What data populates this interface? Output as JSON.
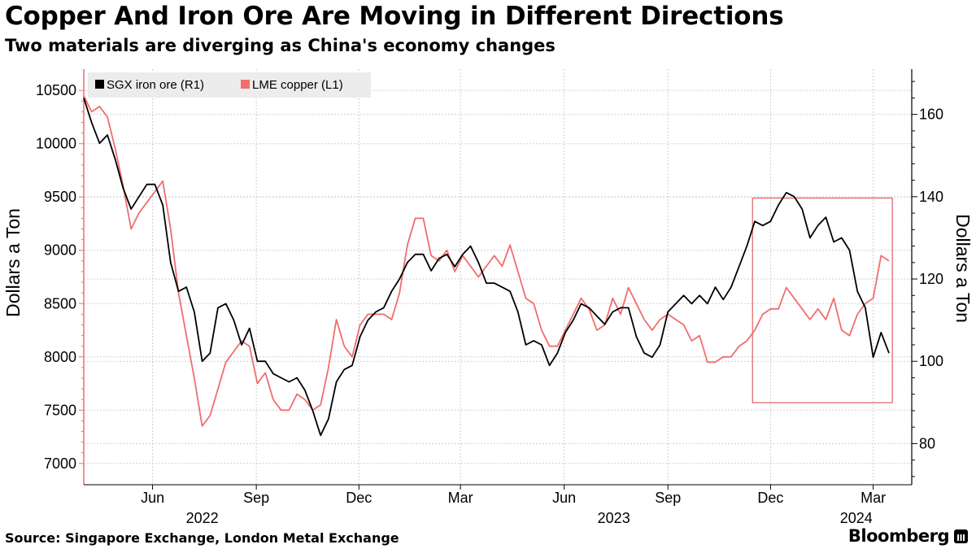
{
  "title": "Copper And Iron Ore Are Moving in Different Directions",
  "subtitle": "Two materials are diverging as China's economy changes",
  "source": "Source: Singapore Exchange, London Metal Exchange",
  "brand": "Bloomberg",
  "chart_data": {
    "type": "line",
    "x_range": [
      "2022-04-01",
      "2024-03-15"
    ],
    "x_ticks": [
      {
        "label": "Jun",
        "date": "2022-06-01"
      },
      {
        "label": "Sep",
        "date": "2022-09-01"
      },
      {
        "label": "Dec",
        "date": "2022-12-01"
      },
      {
        "label": "Mar",
        "date": "2023-03-01"
      },
      {
        "label": "Jun",
        "date": "2023-06-01"
      },
      {
        "label": "Sep",
        "date": "2023-09-01"
      },
      {
        "label": "Dec",
        "date": "2023-12-01"
      },
      {
        "label": "Mar",
        "date": "2024-03-01"
      }
    ],
    "year_labels": [
      {
        "label": "2022",
        "date": "2022-07-15"
      },
      {
        "label": "2023",
        "date": "2023-07-15"
      },
      {
        "label": "2024",
        "date": "2024-02-15"
      }
    ],
    "y_left": {
      "label": "Dollars a Ton",
      "min": 6800,
      "max": 10700,
      "ticks": [
        7000,
        7500,
        8000,
        8500,
        9000,
        9500,
        10000,
        10500
      ]
    },
    "y_right": {
      "label": "Dollars a Ton",
      "min": 70,
      "max": 171,
      "ticks": [
        80,
        100,
        120,
        140,
        160
      ]
    },
    "grid": true,
    "legend_position": "top-left",
    "highlight_box": {
      "start": "2023-11-15",
      "end": "2024-03-18",
      "left_axis_top": 9490,
      "left_axis_bottom": 7570
    },
    "series": [
      {
        "name": "SGX iron ore (R1)",
        "axis": "right",
        "color": "#000000",
        "points": [
          [
            "2022-04-01",
            164
          ],
          [
            "2022-04-08",
            158
          ],
          [
            "2022-04-15",
            153
          ],
          [
            "2022-04-22",
            155
          ],
          [
            "2022-04-29",
            149
          ],
          [
            "2022-05-06",
            142
          ],
          [
            "2022-05-13",
            137
          ],
          [
            "2022-05-20",
            140
          ],
          [
            "2022-05-27",
            143
          ],
          [
            "2022-06-03",
            143
          ],
          [
            "2022-06-10",
            138
          ],
          [
            "2022-06-17",
            124
          ],
          [
            "2022-06-24",
            117
          ],
          [
            "2022-07-01",
            118
          ],
          [
            "2022-07-08",
            112
          ],
          [
            "2022-07-15",
            100
          ],
          [
            "2022-07-22",
            102
          ],
          [
            "2022-07-29",
            113
          ],
          [
            "2022-08-05",
            114
          ],
          [
            "2022-08-12",
            110
          ],
          [
            "2022-08-19",
            104
          ],
          [
            "2022-08-26",
            108
          ],
          [
            "2022-09-02",
            100
          ],
          [
            "2022-09-09",
            100
          ],
          [
            "2022-09-16",
            97
          ],
          [
            "2022-09-23",
            96
          ],
          [
            "2022-09-30",
            95
          ],
          [
            "2022-10-07",
            96
          ],
          [
            "2022-10-14",
            93
          ],
          [
            "2022-10-21",
            88
          ],
          [
            "2022-10-28",
            82
          ],
          [
            "2022-11-04",
            86
          ],
          [
            "2022-11-11",
            95
          ],
          [
            "2022-11-18",
            98
          ],
          [
            "2022-11-25",
            99
          ],
          [
            "2022-12-02",
            106
          ],
          [
            "2022-12-09",
            110
          ],
          [
            "2022-12-16",
            112
          ],
          [
            "2022-12-23",
            113
          ],
          [
            "2022-12-30",
            117
          ],
          [
            "2023-01-06",
            120
          ],
          [
            "2023-01-13",
            124
          ],
          [
            "2023-01-20",
            126
          ],
          [
            "2023-01-27",
            126
          ],
          [
            "2023-02-03",
            122
          ],
          [
            "2023-02-10",
            125
          ],
          [
            "2023-02-17",
            126
          ],
          [
            "2023-02-24",
            123
          ],
          [
            "2023-03-03",
            126
          ],
          [
            "2023-03-10",
            128
          ],
          [
            "2023-03-17",
            124
          ],
          [
            "2023-03-24",
            119
          ],
          [
            "2023-03-31",
            119
          ],
          [
            "2023-04-07",
            118
          ],
          [
            "2023-04-14",
            117
          ],
          [
            "2023-04-21",
            112
          ],
          [
            "2023-04-28",
            104
          ],
          [
            "2023-05-05",
            105
          ],
          [
            "2023-05-12",
            104
          ],
          [
            "2023-05-19",
            99
          ],
          [
            "2023-05-26",
            102
          ],
          [
            "2023-06-02",
            107
          ],
          [
            "2023-06-09",
            110
          ],
          [
            "2023-06-16",
            114
          ],
          [
            "2023-06-23",
            113
          ],
          [
            "2023-06-30",
            111
          ],
          [
            "2023-07-07",
            109
          ],
          [
            "2023-07-14",
            112
          ],
          [
            "2023-07-21",
            113
          ],
          [
            "2023-07-28",
            113
          ],
          [
            "2023-08-04",
            106
          ],
          [
            "2023-08-11",
            102
          ],
          [
            "2023-08-18",
            101
          ],
          [
            "2023-08-25",
            104
          ],
          [
            "2023-09-01",
            112
          ],
          [
            "2023-09-08",
            114
          ],
          [
            "2023-09-15",
            116
          ],
          [
            "2023-09-22",
            114
          ],
          [
            "2023-09-29",
            116
          ],
          [
            "2023-10-06",
            114
          ],
          [
            "2023-10-13",
            118
          ],
          [
            "2023-10-20",
            115
          ],
          [
            "2023-10-27",
            118
          ],
          [
            "2023-11-03",
            123
          ],
          [
            "2023-11-10",
            128
          ],
          [
            "2023-11-17",
            134
          ],
          [
            "2023-11-24",
            133
          ],
          [
            "2023-12-01",
            134
          ],
          [
            "2023-12-08",
            138
          ],
          [
            "2023-12-15",
            141
          ],
          [
            "2023-12-22",
            140
          ],
          [
            "2023-12-29",
            137
          ],
          [
            "2024-01-05",
            130
          ],
          [
            "2024-01-12",
            133
          ],
          [
            "2024-01-19",
            135
          ],
          [
            "2024-01-26",
            129
          ],
          [
            "2024-02-02",
            130
          ],
          [
            "2024-02-09",
            127
          ],
          [
            "2024-02-16",
            117
          ],
          [
            "2024-02-23",
            113
          ],
          [
            "2024-03-01",
            101
          ],
          [
            "2024-03-08",
            107
          ],
          [
            "2024-03-15",
            102
          ]
        ]
      },
      {
        "name": "LME copper (L1)",
        "axis": "left",
        "color": "#f06d6d",
        "points": [
          [
            "2022-04-01",
            10450
          ],
          [
            "2022-04-08",
            10300
          ],
          [
            "2022-04-15",
            10350
          ],
          [
            "2022-04-22",
            10250
          ],
          [
            "2022-04-29",
            9950
          ],
          [
            "2022-05-06",
            9600
          ],
          [
            "2022-05-13",
            9200
          ],
          [
            "2022-05-20",
            9350
          ],
          [
            "2022-05-27",
            9450
          ],
          [
            "2022-06-03",
            9550
          ],
          [
            "2022-06-10",
            9650
          ],
          [
            "2022-06-17",
            9200
          ],
          [
            "2022-06-24",
            8600
          ],
          [
            "2022-07-01",
            8200
          ],
          [
            "2022-07-08",
            7800
          ],
          [
            "2022-07-15",
            7350
          ],
          [
            "2022-07-22",
            7450
          ],
          [
            "2022-07-29",
            7700
          ],
          [
            "2022-08-05",
            7950
          ],
          [
            "2022-08-12",
            8050
          ],
          [
            "2022-08-19",
            8150
          ],
          [
            "2022-08-26",
            8100
          ],
          [
            "2022-09-02",
            7750
          ],
          [
            "2022-09-09",
            7850
          ],
          [
            "2022-09-16",
            7600
          ],
          [
            "2022-09-23",
            7500
          ],
          [
            "2022-09-30",
            7500
          ],
          [
            "2022-10-07",
            7650
          ],
          [
            "2022-10-14",
            7600
          ],
          [
            "2022-10-21",
            7500
          ],
          [
            "2022-10-28",
            7550
          ],
          [
            "2022-11-04",
            7900
          ],
          [
            "2022-11-11",
            8350
          ],
          [
            "2022-11-18",
            8100
          ],
          [
            "2022-11-25",
            8000
          ],
          [
            "2022-12-02",
            8300
          ],
          [
            "2022-12-09",
            8400
          ],
          [
            "2022-12-16",
            8400
          ],
          [
            "2022-12-23",
            8400
          ],
          [
            "2022-12-30",
            8350
          ],
          [
            "2023-01-06",
            8600
          ],
          [
            "2023-01-13",
            9050
          ],
          [
            "2023-01-20",
            9300
          ],
          [
            "2023-01-27",
            9300
          ],
          [
            "2023-02-03",
            8950
          ],
          [
            "2023-02-10",
            8900
          ],
          [
            "2023-02-17",
            9000
          ],
          [
            "2023-02-24",
            8800
          ],
          [
            "2023-03-03",
            8950
          ],
          [
            "2023-03-10",
            8850
          ],
          [
            "2023-03-17",
            8750
          ],
          [
            "2023-03-24",
            8850
          ],
          [
            "2023-03-31",
            8950
          ],
          [
            "2023-04-07",
            8850
          ],
          [
            "2023-04-14",
            9050
          ],
          [
            "2023-04-21",
            8800
          ],
          [
            "2023-04-28",
            8550
          ],
          [
            "2023-05-05",
            8500
          ],
          [
            "2023-05-12",
            8250
          ],
          [
            "2023-05-19",
            8100
          ],
          [
            "2023-05-26",
            8100
          ],
          [
            "2023-06-02",
            8250
          ],
          [
            "2023-06-09",
            8400
          ],
          [
            "2023-06-16",
            8550
          ],
          [
            "2023-06-23",
            8450
          ],
          [
            "2023-06-30",
            8250
          ],
          [
            "2023-07-07",
            8300
          ],
          [
            "2023-07-14",
            8550
          ],
          [
            "2023-07-21",
            8400
          ],
          [
            "2023-07-28",
            8650
          ],
          [
            "2023-08-04",
            8500
          ],
          [
            "2023-08-11",
            8350
          ],
          [
            "2023-08-18",
            8250
          ],
          [
            "2023-08-25",
            8350
          ],
          [
            "2023-09-01",
            8400
          ],
          [
            "2023-09-08",
            8350
          ],
          [
            "2023-09-15",
            8300
          ],
          [
            "2023-09-22",
            8150
          ],
          [
            "2023-09-29",
            8200
          ],
          [
            "2023-10-06",
            7950
          ],
          [
            "2023-10-13",
            7950
          ],
          [
            "2023-10-20",
            8000
          ],
          [
            "2023-10-27",
            8000
          ],
          [
            "2023-11-03",
            8100
          ],
          [
            "2023-11-10",
            8150
          ],
          [
            "2023-11-17",
            8250
          ],
          [
            "2023-11-24",
            8400
          ],
          [
            "2023-12-01",
            8450
          ],
          [
            "2023-12-08",
            8450
          ],
          [
            "2023-12-15",
            8650
          ],
          [
            "2023-12-22",
            8550
          ],
          [
            "2023-12-29",
            8450
          ],
          [
            "2024-01-05",
            8350
          ],
          [
            "2024-01-12",
            8450
          ],
          [
            "2024-01-19",
            8350
          ],
          [
            "2024-01-26",
            8550
          ],
          [
            "2024-02-02",
            8250
          ],
          [
            "2024-02-09",
            8200
          ],
          [
            "2024-02-16",
            8400
          ],
          [
            "2024-02-23",
            8500
          ],
          [
            "2024-03-01",
            8550
          ],
          [
            "2024-03-08",
            8950
          ],
          [
            "2024-03-15",
            8900
          ]
        ]
      }
    ]
  }
}
